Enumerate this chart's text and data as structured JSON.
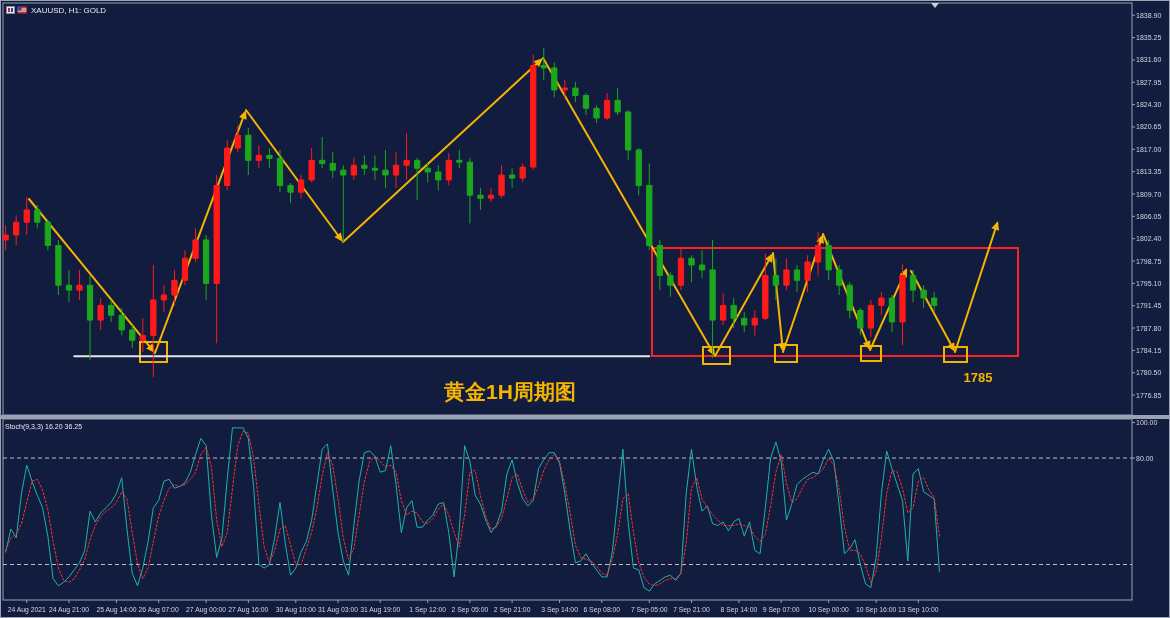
{
  "chart_data": [
    {
      "type": "candlestick",
      "title": "黄金1H周期图",
      "subtitle": "XAUUSD, H1: GOLD",
      "ylim": [
        1773.6,
        1840.9
      ],
      "tick_labels": "y",
      "categories": [
        null,
        null,
        null,
        null,
        "24 Aug 2021",
        null,
        null,
        null,
        null,
        null,
        null,
        null,
        "24 Aug 21:00",
        null,
        null,
        null,
        null,
        null,
        null,
        null,
        null,
        "25 Aug 14:00",
        null,
        null,
        null,
        null,
        null,
        null,
        null,
        "26 Aug 07:00",
        null,
        null,
        null,
        null,
        null,
        null,
        null,
        null,
        "27 Aug 00:00",
        null,
        null,
        null,
        null,
        null,
        null,
        null,
        "27 Aug 16:00",
        null,
        null,
        null,
        null,
        null,
        null,
        null,
        null,
        "30 Aug 10:00",
        null,
        null,
        null,
        null,
        null,
        null,
        null,
        "31 Aug 03:00",
        null,
        null,
        null,
        null,
        null,
        null,
        null,
        "31 Aug 19:00",
        null,
        null,
        null,
        null,
        null,
        null,
        null,
        null,
        "1 Sep 12:00",
        null,
        null,
        null,
        null,
        null,
        null,
        null,
        "2 Sep 05:00",
        null,
        null,
        null,
        null,
        null,
        null,
        null,
        "2 Sep 21:00",
        null,
        null,
        null,
        null,
        null,
        null,
        null,
        null,
        "3 Sep 14:00",
        null,
        null,
        null,
        null,
        null,
        null,
        null,
        "6 Sep 08:00",
        null,
        null,
        null,
        null,
        null,
        null,
        null,
        null,
        "7 Sep 05:00",
        null,
        null,
        null,
        null,
        null,
        null,
        null,
        "7 Sep 21:00",
        null,
        null,
        null,
        null,
        null,
        null,
        null,
        null,
        "8 Sep 14:00",
        null,
        null,
        null,
        null,
        null,
        null,
        null,
        "9 Sep 07:00",
        null,
        null,
        null,
        null,
        null,
        null,
        null,
        null,
        "10 Sep 00:00",
        null,
        null,
        null,
        null,
        null,
        null,
        null,
        null,
        "10 Sep 16:00",
        null,
        null,
        null,
        null,
        null,
        null,
        null,
        "13 Sep 10:00",
        null,
        null,
        null,
        null,
        null,
        null,
        null,
        null,
        null,
        null,
        null,
        null,
        null,
        null,
        null,
        null,
        null,
        null,
        null,
        null,
        null,
        null,
        null,
        null,
        null,
        null,
        null,
        null,
        null,
        null,
        null,
        null,
        null,
        null,
        null,
        null,
        null,
        null,
        null,
        null
      ],
      "yticks": [
        {
          "value": 1838.9,
          "label": "1838.90"
        },
        {
          "value": 1835.25,
          "label": "1835.25"
        },
        {
          "value": 1831.6,
          "label": "1831.60"
        },
        {
          "value": 1827.95,
          "label": "1827.95"
        },
        {
          "value": 1824.3,
          "label": "1824.30"
        },
        {
          "value": 1820.65,
          "label": "1820.65"
        },
        {
          "value": 1817,
          "label": "1817.00"
        },
        {
          "value": 1813.35,
          "label": "1813.35"
        },
        {
          "value": 1809.7,
          "label": "1809.70"
        },
        {
          "value": 1806.05,
          "label": "1806.05"
        },
        {
          "value": 1802.4,
          "label": "1802.40"
        },
        {
          "value": 1798.75,
          "label": "1798.75"
        },
        {
          "value": 1795.1,
          "label": "1795.10"
        },
        {
          "value": 1791.45,
          "label": "1791.45"
        },
        {
          "value": 1787.8,
          "label": "1787.80"
        },
        {
          "value": 1784.15,
          "label": "1784.15"
        },
        {
          "value": 1780.5,
          "label": "1780.50"
        },
        {
          "value": 1776.85,
          "label": "1776.85"
        }
      ],
      "annotations": [
        "1785"
      ],
      "series": [
        {
          "ohlc": [
            [
              1802.2,
              1804.6,
              1800.5,
              1803.0
            ],
            null,
            [
              1803.0,
              1806.2,
              1801.3,
              1805.1
            ],
            null,
            [
              1805.1,
              1809.2,
              1803.0,
              1807.1
            ],
            null,
            [
              1807.1,
              1807.9,
              1804.1,
              1805.1
            ],
            null,
            [
              1805.1,
              1805.4,
              1800.5,
              1801.3
            ],
            null,
            [
              1801.3,
              1802.2,
              1793.2,
              1794.8
            ],
            null,
            [
              1794.8,
              1797.3,
              1792.0,
              1794.0
            ],
            null,
            [
              1794.0,
              1797.3,
              1792.4,
              1794.8
            ],
            null,
            [
              1794.8,
              1796.4,
              1782.6,
              1789.1
            ],
            null,
            [
              1789.1,
              1792.7,
              1787.5,
              1791.5
            ],
            null,
            [
              1791.5,
              1792.4,
              1788.8,
              1789.9
            ],
            null,
            [
              1789.9,
              1791.1,
              1786.6,
              1787.5
            ],
            null,
            [
              1787.5,
              1788.3,
              1784.5,
              1785.8
            ],
            null,
            [
              1785.8,
              1789.4,
              1783.9,
              1786.6
            ],
            null,
            [
              1786.6,
              1798.1,
              1779.8,
              1792.4
            ],
            null,
            [
              1792.4,
              1794.8,
              1790.4,
              1793.2
            ],
            null,
            [
              1793.2,
              1797.3,
              1791.5,
              1795.6
            ],
            null,
            [
              1795.6,
              1800.5,
              1794.8,
              1799.2
            ],
            null,
            [
              1799.2,
              1804.1,
              1798.6,
              1802.2
            ],
            null,
            [
              1802.2,
              1803.0,
              1792.4,
              1795.1
            ],
            null,
            [
              1795.1,
              1812.8,
              1785.3,
              1811.1
            ],
            null,
            [
              1811.1,
              1818.5,
              1810.3,
              1817.2
            ],
            null,
            [
              1817.2,
              1820.9,
              1816.5,
              1819.3
            ],
            null,
            [
              1819.3,
              1820.5,
              1812.8,
              1815.2
            ],
            null,
            [
              1815.2,
              1817.7,
              1813.9,
              1816.0
            ],
            null,
            [
              1816.0,
              1817.2,
              1813.9,
              1815.5
            ],
            null,
            [
              1815.5,
              1816.9,
              1810.0,
              1811.1
            ],
            null,
            [
              1811.1,
              1811.5,
              1808.2,
              1810.0
            ],
            null,
            [
              1810.0,
              1812.8,
              1809.0,
              1812.0
            ],
            null,
            [
              1812.0,
              1817.2,
              1811.6,
              1815.2
            ],
            null,
            [
              1815.2,
              1819.0,
              1813.9,
              1814.7
            ],
            null,
            [
              1814.7,
              1816.5,
              1812.3,
              1813.6
            ],
            null,
            [
              1813.6,
              1814.4,
              1801.8,
              1812.8
            ],
            null,
            [
              1812.8,
              1815.6,
              1812.0,
              1814.4
            ],
            null,
            [
              1814.4,
              1816.0,
              1812.8,
              1813.9
            ],
            null,
            [
              1813.9,
              1816.0,
              1812.0,
              1813.6
            ],
            null,
            [
              1813.6,
              1816.9,
              1810.7,
              1812.8
            ],
            null,
            [
              1812.8,
              1816.5,
              1810.7,
              1814.4
            ],
            null,
            [
              1814.4,
              1819.6,
              1812.0,
              1815.2
            ],
            null,
            [
              1815.2,
              1815.6,
              1808.7,
              1813.9
            ],
            null,
            [
              1813.9,
              1814.7,
              1811.6,
              1813.3
            ],
            null,
            [
              1813.3,
              1814.4,
              1810.3,
              1812.0
            ],
            null,
            [
              1812.0,
              1816.4,
              1811.1,
              1815.2
            ],
            null,
            [
              1815.2,
              1816.9,
              1813.9,
              1814.9
            ],
            null,
            [
              1814.9,
              1815.6,
              1804.9,
              1809.5
            ],
            null,
            [
              1809.5,
              1810.7,
              1807.1,
              1809.0
            ],
            null,
            [
              1809.0,
              1810.7,
              1808.4,
              1809.5
            ],
            null,
            [
              1809.5,
              1814.4,
              1809.0,
              1812.8
            ],
            null,
            [
              1812.8,
              1813.9,
              1810.7,
              1812.3
            ],
            null,
            [
              1812.3,
              1814.7,
              1811.6,
              1814.1
            ],
            null,
            [
              1814.1,
              1832.4,
              1813.6,
              1830.7
            ],
            null,
            [
              1830.7,
              1833.5,
              1828.3,
              1830.3
            ],
            null,
            [
              1830.3,
              1831.2,
              1825.5,
              1826.7
            ],
            null,
            [
              1826.7,
              1828.3,
              1825.4,
              1827.0
            ],
            null,
            [
              1827.0,
              1828.0,
              1824.7,
              1825.8
            ],
            null,
            [
              1825.8,
              1826.2,
              1822.6,
              1823.7
            ],
            null,
            [
              1823.7,
              1824.2,
              1821.3,
              1822.1
            ],
            null,
            [
              1822.1,
              1826.2,
              1821.8,
              1825.0
            ],
            null,
            [
              1825.0,
              1827.0,
              1822.6,
              1823.1
            ],
            null,
            [
              1823.1,
              1823.4,
              1815.2,
              1816.9
            ],
            null,
            [
              1816.9,
              1817.2,
              1809.5,
              1811.1
            ],
            null,
            [
              1811.1,
              1814.7,
              1800.5,
              1801.3
            ],
            null,
            [
              1801.3,
              1802.2,
              1794.0,
              1796.4
            ],
            null,
            [
              1796.4,
              1796.9,
              1792.9,
              1794.8
            ],
            null,
            [
              1794.8,
              1800.9,
              1794.0,
              1799.2
            ],
            null,
            [
              1799.2,
              1799.7,
              1795.3,
              1798.1
            ],
            null,
            [
              1798.1,
              1800.5,
              1796.0,
              1797.3
            ],
            null,
            [
              1797.3,
              1802.2,
              1782.9,
              1789.1
            ],
            null,
            [
              1789.1,
              1793.5,
              1788.3,
              1791.5
            ],
            null,
            [
              1791.5,
              1792.7,
              1787.8,
              1789.4
            ],
            null,
            [
              1789.4,
              1790.4,
              1787.1,
              1788.3
            ],
            null,
            [
              1788.3,
              1790.7,
              1786.6,
              1789.4
            ],
            null,
            [
              1789.4,
              1800.0,
              1789.1,
              1796.4
            ],
            null,
            [
              1796.4,
              1799.2,
              1792.4,
              1794.8
            ],
            null,
            [
              1794.8,
              1799.2,
              1794.0,
              1797.3
            ],
            null,
            [
              1797.3,
              1798.1,
              1793.7,
              1795.6
            ],
            null,
            [
              1795.6,
              1799.7,
              1793.7,
              1798.6
            ],
            null,
            [
              1798.6,
              1803.5,
              1796.4,
              1801.3
            ],
            null,
            [
              1801.3,
              1802.2,
              1795.6,
              1797.3
            ],
            null,
            [
              1797.3,
              1798.1,
              1793.2,
              1794.8
            ],
            null,
            [
              1794.8,
              1795.3,
              1789.4,
              1790.7
            ],
            null,
            [
              1790.7,
              1791.1,
              1786.6,
              1787.8
            ],
            null,
            [
              1787.8,
              1792.4,
              1786.3,
              1791.5
            ],
            null,
            [
              1791.5,
              1793.7,
              1789.9,
              1792.7
            ],
            null,
            [
              1792.7,
              1793.2,
              1787.1,
              1788.8
            ],
            null,
            [
              1788.8,
              1798.2,
              1785.0,
              1796.4
            ],
            null,
            [
              1796.4,
              1797.3,
              1792.0,
              1794.0
            ],
            null,
            [
              1794.0,
              1794.8,
              1791.1,
              1792.7
            ],
            null,
            [
              1792.7,
              1793.7,
              1790.4,
              1791.5
            ],
            null,
            null,
            null,
            null,
            null,
            null,
            null,
            null,
            null,
            null,
            null,
            null,
            null,
            null,
            null,
            null,
            null,
            null,
            null,
            null,
            null,
            null,
            null,
            null,
            null,
            null,
            null,
            null,
            null,
            null,
            null,
            null,
            null,
            null,
            null,
            null,
            null
          ],
          "colors": [
            "#ff1a1a",
            null,
            "#ff1a1a",
            null,
            "#ff1a1a",
            null,
            "#1ca81c",
            null,
            "#1ca81c",
            null,
            "#1ca81c",
            null,
            "#1ca81c",
            null,
            "#ff1a1a",
            null,
            "#1ca81c",
            null,
            "#ff1a1a",
            null,
            "#1ca81c",
            null,
            "#1ca81c",
            null,
            "#1ca81c",
            null,
            "#ff1a1a",
            null,
            "#ff1a1a",
            null,
            "#ff1a1a",
            null,
            "#ff1a1a",
            null,
            "#ff1a1a",
            null,
            "#ff1a1a",
            null,
            "#1ca81c",
            null,
            "#ff1a1a",
            null,
            "#ff1a1a",
            null,
            "#ff1a1a",
            null,
            "#1ca81c",
            null,
            "#ff1a1a",
            null,
            "#1ca81c",
            null,
            "#1ca81c",
            null,
            "#1ca81c",
            null,
            "#ff1a1a",
            null,
            "#ff1a1a",
            null,
            "#1ca81c",
            null,
            "#1ca81c",
            null,
            "#1ca81c",
            null,
            "#ff1a1a",
            null,
            "#1ca81c",
            null,
            "#1ca81c",
            null,
            "#1ca81c",
            null,
            "#ff1a1a",
            null,
            "#ff1a1a",
            null,
            "#1ca81c",
            null,
            "#1ca81c",
            null,
            "#1ca81c",
            null,
            "#ff1a1a",
            null,
            "#1ca81c",
            null,
            "#1ca81c",
            null,
            "#1ca81c",
            null,
            "#ff1a1a",
            null,
            "#ff1a1a",
            null,
            "#1ca81c",
            null,
            "#ff1a1a",
            null,
            "#ff1a1a",
            null,
            "#1ca81c",
            null,
            "#1ca81c",
            null,
            "#ff1a1a",
            null,
            "#1ca81c",
            null,
            "#1ca81c",
            null,
            "#1ca81c",
            null,
            "#ff1a1a",
            null,
            "#1ca81c",
            null,
            "#1ca81c",
            null,
            "#1ca81c",
            null,
            "#1ca81c",
            null,
            "#1ca81c",
            null,
            "#1ca81c",
            null,
            "#ff1a1a",
            null,
            "#1ca81c",
            null,
            "#1ca81c",
            null,
            "#1ca81c",
            null,
            "#ff1a1a",
            null,
            "#1ca81c",
            null,
            "#1ca81c",
            null,
            "#ff1a1a",
            null,
            "#ff1a1a",
            null,
            "#1ca81c",
            null,
            "#ff1a1a",
            null,
            "#1ca81c",
            null,
            "#ff1a1a",
            null,
            "#ff1a1a",
            null,
            "#1ca81c",
            null,
            "#1ca81c",
            null,
            "#1ca81c",
            null,
            "#1ca81c",
            null,
            "#ff1a1a",
            null,
            "#ff1a1a",
            null,
            "#1ca81c",
            null,
            "#ff1a1a",
            null,
            "#1ca81c",
            null,
            "#1ca81c",
            null,
            "#1ca81c",
            null,
            null,
            null,
            null,
            null,
            null,
            null,
            null,
            null,
            null,
            null,
            null,
            null,
            null,
            null,
            null,
            null,
            null,
            null,
            null,
            null,
            null,
            null,
            null,
            null,
            null,
            null,
            null,
            null,
            null,
            null,
            null,
            null,
            null,
            null,
            null,
            null
          ]
        },
        {
          "type": "line",
          "color": "#e6e6e6",
          "values": [
            null,
            null,
            null,
            null,
            null,
            null,
            null,
            null,
            null,
            null,
            null,
            null,
            null,
            1783.2,
            1783.2,
            1783.2,
            1783.2,
            1783.2,
            1783.2,
            1783.2,
            1783.2,
            1783.2,
            1783.2,
            1783.2,
            1783.2,
            1783.2,
            1783.2,
            1783.2,
            1783.2,
            1783.2,
            1783.2,
            1783.2,
            1783.2,
            1783.2,
            1783.2,
            1783.2,
            1783.2,
            1783.2,
            1783.2,
            1783.2,
            1783.2,
            1783.2,
            1783.2,
            1783.2,
            1783.2,
            1783.2,
            1783.2,
            1783.2,
            1783.2,
            1783.2,
            1783.2,
            1783.2,
            1783.2,
            1783.2,
            1783.2,
            1783.2,
            1783.2,
            1783.2,
            1783.2,
            1783.2,
            1783.2,
            1783.2,
            1783.2,
            1783.2,
            1783.2,
            1783.2,
            1783.2,
            1783.2,
            1783.2,
            1783.2,
            1783.2,
            1783.2,
            1783.2,
            1783.2,
            1783.2,
            1783.2,
            1783.2,
            1783.2,
            1783.2,
            1783.2,
            1783.2,
            1783.2,
            1783.2,
            1783.2,
            1783.2,
            1783.2,
            1783.2,
            1783.2,
            1783.2,
            1783.2,
            1783.2,
            1783.2,
            1783.2,
            1783.2,
            1783.2,
            1783.2,
            1783.2,
            1783.2,
            1783.2,
            1783.2,
            1783.2,
            1783.2,
            1783.2,
            1783.2,
            1783.2,
            1783.2,
            1783.2,
            1783.2,
            1783.2,
            1783.2,
            1783.2,
            1783.2,
            1783.2,
            1783.2,
            1783.2,
            1783.2,
            1783.2,
            1783.2,
            1783.2,
            1783.2,
            1783.2,
            1783.2,
            1783.2,
            null,
            null,
            null,
            null,
            null,
            null,
            null,
            null,
            null,
            null,
            null,
            null,
            null,
            null,
            null,
            null,
            null,
            null,
            null,
            null,
            null,
            null,
            null,
            null,
            null,
            null,
            null,
            null,
            null,
            null,
            null,
            null,
            null,
            null,
            null,
            null,
            null,
            null,
            null,
            null,
            null,
            null,
            null,
            null,
            null,
            null,
            null,
            null,
            null,
            null,
            null,
            null,
            null,
            null,
            null,
            null,
            null,
            null,
            null,
            null,
            null,
            null,
            null,
            null,
            null,
            null,
            null,
            null,
            null,
            null,
            null,
            null,
            null,
            null,
            null,
            null,
            null,
            null,
            null,
            null,
            null,
            null,
            null,
            null,
            null,
            null,
            null,
            null,
            null,
            null,
            null
          ]
        }
      ]
    },
    {
      "type": "line",
      "title": "Stoch(9,3,3) 16.20 36.25",
      "ylim": [
        0,
        102
      ],
      "categories": [
        null,
        null,
        null,
        null,
        "24 Aug 2021",
        null,
        null,
        null,
        null,
        null,
        null,
        null,
        "24 Aug 21:00",
        null,
        null,
        null,
        null,
        null,
        null,
        null,
        null,
        "25 Aug 14:00",
        null,
        null,
        null,
        null,
        null,
        null,
        null,
        "26 Aug 07:00",
        null,
        null,
        null,
        null,
        null,
        null,
        null,
        null,
        "27 Aug 00:00",
        null,
        null,
        null,
        null,
        null,
        null,
        null,
        "27 Aug 16:00",
        null,
        null,
        null,
        null,
        null,
        null,
        null,
        null,
        "30 Aug 10:00",
        null,
        null,
        null,
        null,
        null,
        null,
        null,
        "31 Aug 03:00",
        null,
        null,
        null,
        null,
        null,
        null,
        null,
        "31 Aug 19:00",
        null,
        null,
        null,
        null,
        null,
        null,
        null,
        null,
        "1 Sep 12:00",
        null,
        null,
        null,
        null,
        null,
        null,
        null,
        "2 Sep 05:00",
        null,
        null,
        null,
        null,
        null,
        null,
        null,
        "2 Sep 21:00",
        null,
        null,
        null,
        null,
        null,
        null,
        null,
        null,
        "3 Sep 14:00",
        null,
        null,
        null,
        null,
        null,
        null,
        null,
        "6 Sep 08:00",
        null,
        null,
        null,
        null,
        null,
        null,
        null,
        null,
        "7 Sep 05:00",
        null,
        null,
        null,
        null,
        null,
        null,
        null,
        "7 Sep 21:00",
        null,
        null,
        null,
        null,
        null,
        null,
        null,
        null,
        "8 Sep 14:00",
        null,
        null,
        null,
        null,
        null,
        null,
        null,
        "9 Sep 07:00",
        null,
        null,
        null,
        null,
        null,
        null,
        null,
        null,
        "10 Sep 00:00",
        null,
        null,
        null,
        null,
        null,
        null,
        null,
        null,
        "10 Sep 16:00",
        null,
        null,
        null,
        null,
        null,
        null,
        null,
        "13 Sep 10:00",
        null,
        null,
        null,
        null,
        null,
        null,
        null,
        null,
        null,
        null,
        null,
        null,
        null,
        null,
        null,
        null,
        null,
        null,
        null,
        null,
        null,
        null,
        null,
        null,
        null,
        null,
        null,
        null,
        null,
        null,
        null,
        null,
        null,
        null,
        null,
        null,
        null,
        null,
        null,
        null
      ],
      "yticks": [
        {
          "value": 100,
          "label": "100.00"
        },
        {
          "value": 80,
          "label": "80.00"
        }
      ],
      "ref_lines": [
        {
          "axis": "y",
          "value": 80,
          "color": "#b8bcc8",
          "line_style": "dashed"
        },
        {
          "axis": "y",
          "value": 20,
          "color": "#b8bcc8",
          "line_style": "dashed"
        }
      ],
      "series": [
        {
          "color": "#20b2aa",
          "values": [
            27,
            40,
            35,
            60,
            76,
            67,
            59,
            52,
            36,
            12,
            8,
            10,
            13,
            17,
            21,
            28,
            50,
            44,
            49,
            52,
            55,
            60,
            69,
            40,
            15,
            8,
            18,
            33,
            52,
            56,
            67,
            68,
            63,
            64,
            66,
            72,
            82,
            91,
            87,
            48,
            24,
            35,
            68,
            97,
            97,
            97,
            91,
            64,
            20,
            18,
            20,
            35,
            55,
            32,
            14,
            18,
            27,
            33,
            45,
            65,
            85,
            88,
            62,
            38,
            22,
            14,
            42,
            67,
            83,
            84,
            81,
            72,
            73,
            87,
            65,
            38,
            52,
            56,
            41,
            41,
            45,
            48,
            54,
            55,
            38,
            13,
            40,
            87,
            78,
            59,
            54,
            45,
            38,
            42,
            50,
            71,
            79,
            66,
            57,
            53,
            56,
            74,
            79,
            83,
            83,
            77,
            60,
            39,
            21,
            22,
            26,
            21,
            17,
            13,
            13,
            27,
            56,
            85,
            44,
            18,
            17,
            7,
            5,
            9,
            11,
            13,
            14,
            11,
            15,
            60,
            85,
            64,
            50,
            53,
            43,
            42,
            44,
            39,
            44,
            46,
            36,
            44,
            28,
            26,
            52,
            80,
            89,
            78,
            45,
            54,
            65,
            68,
            70,
            72,
            71,
            79,
            85,
            78,
            53,
            26,
            29,
            34,
            20,
            9,
            7,
            24,
            60,
            84,
            74,
            65,
            56,
            22,
            71,
            74,
            61,
            59,
            57,
            16,
            null,
            null,
            null,
            null,
            null,
            null,
            null,
            null,
            null,
            null,
            null,
            null,
            null,
            null,
            null,
            null,
            null,
            null,
            null,
            null,
            null,
            null,
            null,
            null,
            null,
            null,
            null,
            null,
            null,
            null,
            null,
            null,
            null,
            null,
            null,
            null
          ]
        },
        {
          "color": "#ff3030",
          "line_style": "dotted",
          "values": [
            28,
            35,
            37,
            43,
            55,
            67,
            68,
            62,
            51,
            33,
            18,
            11,
            10,
            12,
            17,
            23,
            34,
            42,
            47,
            50,
            52,
            55,
            61,
            57,
            38,
            20,
            12,
            18,
            33,
            47,
            56,
            63,
            65,
            64,
            65,
            68,
            72,
            82,
            86,
            75,
            45,
            30,
            38,
            63,
            87,
            95,
            94,
            80,
            54,
            30,
            21,
            28,
            40,
            42,
            31,
            20,
            20,
            29,
            38,
            52,
            70,
            83,
            76,
            57,
            35,
            23,
            29,
            48,
            67,
            78,
            81,
            78,
            75,
            76,
            72,
            56,
            48,
            50,
            49,
            44,
            43,
            46,
            51,
            54,
            48,
            38,
            30,
            48,
            72,
            73,
            59,
            47,
            40,
            41,
            46,
            57,
            69,
            71,
            62,
            55,
            57,
            64,
            73,
            79,
            82,
            78,
            65,
            49,
            31,
            24,
            23,
            22,
            19,
            15,
            14,
            23,
            37,
            57,
            60,
            38,
            21,
            13,
            9,
            8,
            9,
            11,
            12,
            12,
            15,
            32,
            63,
            69,
            57,
            52,
            48,
            45,
            42,
            42,
            42,
            43,
            42,
            41,
            36,
            33,
            37,
            53,
            72,
            82,
            66,
            55,
            57,
            63,
            68,
            69,
            71,
            74,
            80,
            76,
            62,
            41,
            28,
            28,
            26,
            19,
            10,
            16,
            35,
            60,
            73,
            72,
            63,
            49,
            52,
            67,
            69,
            62,
            58,
            36,
            null,
            null,
            null,
            null,
            null,
            null,
            null,
            null,
            null,
            null,
            null,
            null,
            null,
            null,
            null,
            null,
            null,
            null,
            null,
            null,
            null,
            null,
            null,
            null,
            null,
            null,
            null,
            null,
            null,
            null,
            null,
            null,
            null,
            null,
            null,
            null
          ]
        }
      ]
    }
  ]
}
